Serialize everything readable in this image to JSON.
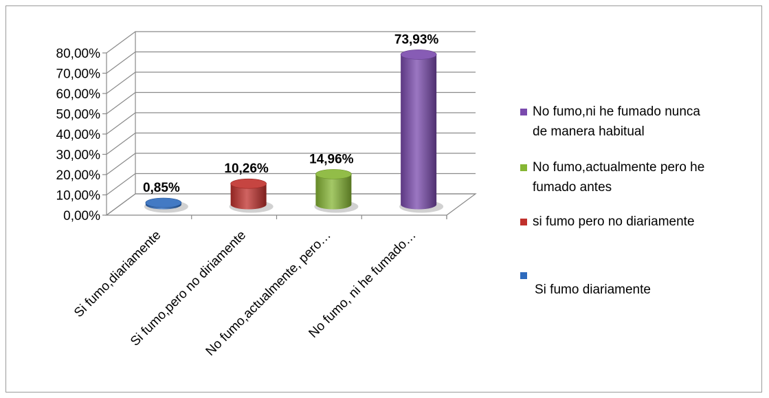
{
  "chart_data": {
    "type": "bar",
    "style": "3d-cylinder",
    "categories": [
      "Si fumo,diariamente",
      "Si fumo,pero no diriamente",
      "No fumo,actualmente, pero…",
      "No fumo, ni he fumado…"
    ],
    "values": [
      0.85,
      10.26,
      14.96,
      73.93
    ],
    "data_labels": [
      "0,85%",
      "10,26%",
      "14,96%",
      "73,93%"
    ],
    "colors": [
      "#2e6bbd",
      "#c0302c",
      "#86b634",
      "#7a4aad"
    ],
    "ylim": [
      0,
      80
    ],
    "yticks": [
      "0,00%",
      "10,00%",
      "20,00%",
      "30,00%",
      "40,00%",
      "50,00%",
      "60,00%",
      "70,00%",
      "80,00%"
    ],
    "grid": true,
    "legend_position": "right",
    "legend": [
      {
        "lines": [
          "No fumo,ni he fumado nunca",
          "de manera habitual"
        ],
        "color": "#7a4aad"
      },
      {
        "lines": [
          "No fumo,actualmente pero he",
          "fumado antes"
        ],
        "color": "#86b634"
      },
      {
        "lines": [
          "si fumo pero no diariamente"
        ],
        "color": "#c0302c"
      },
      {
        "lines": [
          "Si fumo diariamente"
        ],
        "color": "#2e6bbd"
      }
    ]
  }
}
